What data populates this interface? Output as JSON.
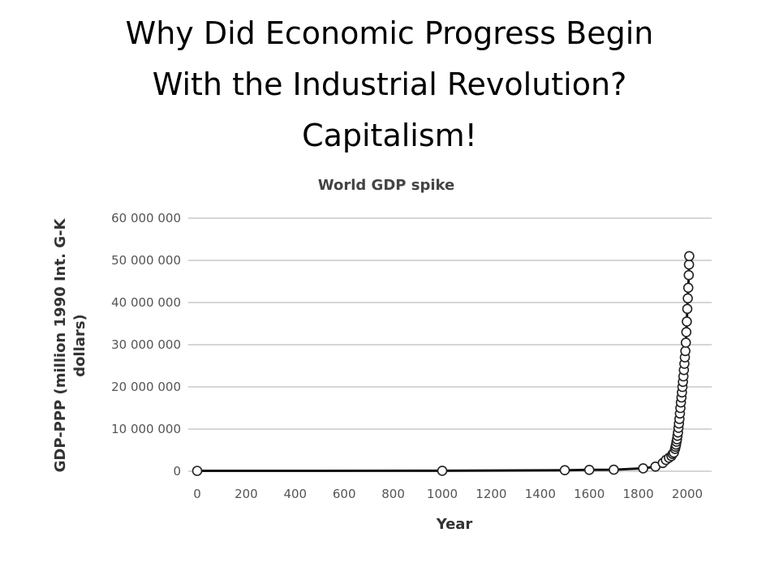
{
  "slide": {
    "title_lines": [
      "Why Did Economic Progress Begin",
      "With the Industrial Revolution?",
      "Capitalism!"
    ]
  },
  "chart_data": {
    "type": "scatter",
    "title": "World GDP spike",
    "xlabel": "Year",
    "ylabel_lines": [
      "GDP-PPP (million 1990 Int. G-K",
      "dollars)"
    ],
    "xlim": [
      0,
      2100
    ],
    "ylim": [
      0,
      60000000
    ],
    "x_ticks": [
      0,
      200,
      400,
      600,
      800,
      1000,
      1200,
      1400,
      1600,
      1800,
      2000
    ],
    "y_ticks": [
      0,
      10000000,
      20000000,
      30000000,
      40000000,
      50000000,
      60000000
    ],
    "y_tick_labels": [
      "0",
      "10 000 000",
      "20 000 000",
      "30 000 000",
      "40 000 000",
      "50 000 000",
      "60 000 000"
    ],
    "x_tick_labels": [
      "0",
      "200",
      "400",
      "600",
      "800",
      "1000",
      "1200",
      "1400",
      "1600",
      "1800",
      "2000"
    ],
    "grid": "horizontal",
    "connected": true,
    "x": [
      0,
      1000,
      1500,
      1600,
      1700,
      1820,
      1870,
      1900,
      1913,
      1925,
      1935,
      1940,
      1945,
      1950,
      1952,
      1954,
      1956,
      1958,
      1960,
      1962,
      1964,
      1966,
      1968,
      1970,
      1972,
      1974,
      1976,
      1978,
      1980,
      1982,
      1984,
      1986,
      1988,
      1990,
      1992,
      1994,
      1996,
      1998,
      2000,
      2002,
      2004,
      2006,
      2007,
      2008
    ],
    "y": [
      105000,
      120000,
      250000,
      330000,
      370000,
      690000,
      1100000,
      1970000,
      2700000,
      3200000,
      3600000,
      4100000,
      4400000,
      5300000,
      5800000,
      6300000,
      7000000,
      7600000,
      8400000,
      9200000,
      10300000,
      11300000,
      12400000,
      13700000,
      15000000,
      16300000,
      17500000,
      18700000,
      20000000,
      21200000,
      22500000,
      24000000,
      25500000,
      27000000,
      28500000,
      30500000,
      33000000,
      35500000,
      38500000,
      41000000,
      43500000,
      46500000,
      49000000,
      51000000
    ]
  }
}
